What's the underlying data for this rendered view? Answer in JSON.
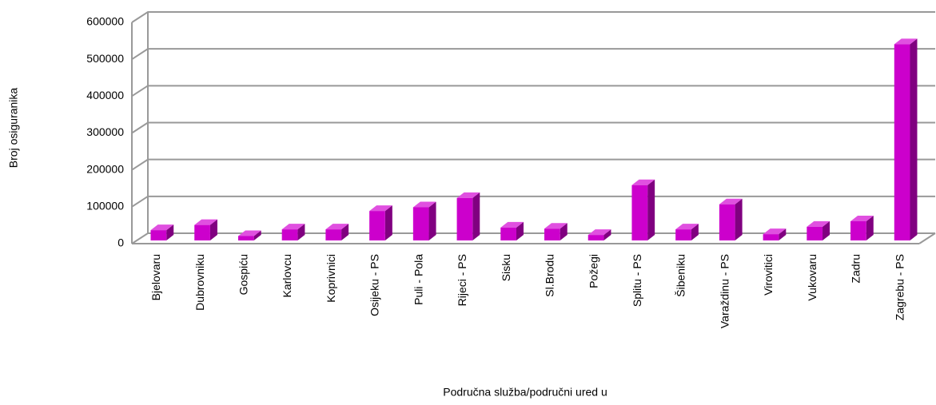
{
  "chart_data": {
    "type": "bar",
    "x_label": "Područna služba/područni ured u",
    "y_label": "Broj osiguranika",
    "categories": [
      "Bjelovaru",
      "Dubrovniku",
      "Gospiću",
      "Karlovcu",
      "Koprivnici",
      "Osijeku - PS",
      "Puli - Pola",
      "Rijeci - PS",
      "Sisku",
      "Sl.Brodu",
      "Požegi",
      "Splitu - PS",
      "Šibeniku",
      "Varaždinu - PS",
      "Virovitici",
      "Vukovaru",
      "Zadru",
      "Zagrebu - PS"
    ],
    "values": [
      28000,
      42000,
      12000,
      30000,
      30000,
      80000,
      90000,
      115000,
      35000,
      32000,
      15000,
      150000,
      30000,
      98000,
      17000,
      37000,
      52000,
      532000
    ],
    "color": "#cc00cc",
    "ylim": [
      0,
      600000
    ],
    "yticks": [
      0,
      100000,
      200000,
      300000,
      400000,
      500000,
      600000
    ],
    "grid": true
  }
}
